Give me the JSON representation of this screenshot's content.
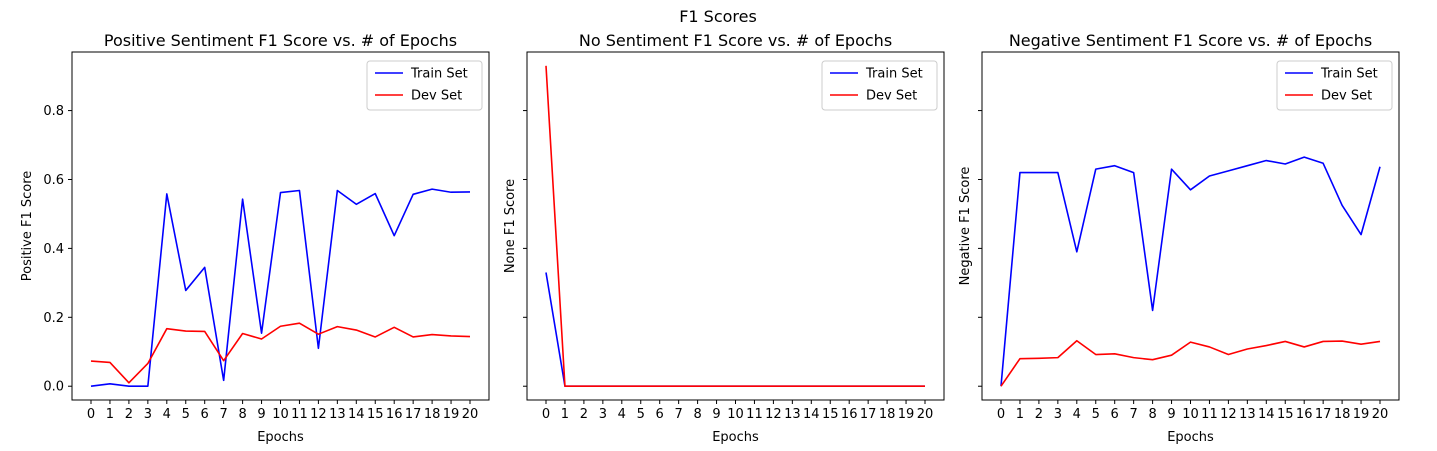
{
  "figure": {
    "title": "F1 Scores"
  },
  "colors": {
    "train": "#0000ff",
    "dev": "#ff0000",
    "axes": "#000000",
    "legend_border": "#cccccc"
  },
  "chart_data": [
    {
      "type": "line",
      "title": "Positive Sentiment F1 Score vs. # of Epochs",
      "xlabel": "Epochs",
      "ylabel": "Positive F1 Score",
      "x": [
        0,
        1,
        2,
        3,
        4,
        5,
        6,
        7,
        8,
        9,
        10,
        11,
        12,
        13,
        14,
        15,
        16,
        17,
        18,
        19,
        20
      ],
      "xticks": [
        "0",
        "1",
        "2",
        "3",
        "4",
        "5",
        "6",
        "7",
        "8",
        "9",
        "10",
        "11",
        "12",
        "13",
        "14",
        "15",
        "16",
        "17",
        "18",
        "19",
        "20"
      ],
      "ylim": [
        -0.04,
        0.97
      ],
      "yticks": [
        0.0,
        0.2,
        0.4,
        0.6,
        0.8
      ],
      "yticklabels": [
        "0.0",
        "0.2",
        "0.4",
        "0.6",
        "0.8"
      ],
      "legend": {
        "location": "upper right",
        "entries": [
          "Train Set",
          "Dev Set"
        ]
      },
      "series": [
        {
          "name": "Train Set",
          "color": "#0000ff",
          "values": [
            0.0,
            0.007,
            0.0,
            0.0,
            0.558,
            0.278,
            0.345,
            0.017,
            0.543,
            0.154,
            0.562,
            0.568,
            0.11,
            0.568,
            0.528,
            0.559,
            0.437,
            0.557,
            0.572,
            0.563,
            0.564
          ]
        },
        {
          "name": "Dev Set",
          "color": "#ff0000",
          "values": [
            0.073,
            0.069,
            0.01,
            0.066,
            0.167,
            0.16,
            0.159,
            0.074,
            0.153,
            0.137,
            0.174,
            0.183,
            0.151,
            0.173,
            0.163,
            0.143,
            0.171,
            0.143,
            0.15,
            0.146,
            0.144
          ]
        }
      ]
    },
    {
      "type": "line",
      "title": "No Sentiment F1 Score vs. # of Epochs",
      "xlabel": "Epochs",
      "ylabel": "None F1 Score",
      "x": [
        0,
        1,
        2,
        3,
        4,
        5,
        6,
        7,
        8,
        9,
        10,
        11,
        12,
        13,
        14,
        15,
        16,
        17,
        18,
        19,
        20
      ],
      "xticks": [
        "0",
        "1",
        "2",
        "3",
        "4",
        "5",
        "6",
        "7",
        "8",
        "9",
        "10",
        "11",
        "12",
        "13",
        "14",
        "15",
        "16",
        "17",
        "18",
        "19",
        "20"
      ],
      "ylim": [
        -0.04,
        0.97
      ],
      "yticks": [
        0.0,
        0.2,
        0.4,
        0.6,
        0.8
      ],
      "yticklabels": [
        "",
        "",
        "",
        "",
        ""
      ],
      "legend": {
        "location": "upper right",
        "entries": [
          "Train Set",
          "Dev Set"
        ]
      },
      "series": [
        {
          "name": "Train Set",
          "color": "#0000ff",
          "values": [
            0.33,
            0,
            0,
            0,
            0,
            0,
            0,
            0,
            0,
            0,
            0,
            0,
            0,
            0,
            0,
            0,
            0,
            0,
            0,
            0,
            0
          ]
        },
        {
          "name": "Dev Set",
          "color": "#ff0000",
          "values": [
            0.93,
            0,
            0,
            0,
            0,
            0,
            0,
            0,
            0,
            0,
            0,
            0,
            0,
            0,
            0,
            0,
            0,
            0,
            0,
            0,
            0
          ]
        }
      ]
    },
    {
      "type": "line",
      "title": "Negative Sentiment F1 Score vs. # of Epochs",
      "xlabel": "Epochs",
      "ylabel": "Negative F1 Score",
      "x": [
        0,
        1,
        2,
        3,
        4,
        5,
        6,
        7,
        8,
        9,
        10,
        11,
        12,
        13,
        14,
        15,
        16,
        17,
        18,
        19,
        20
      ],
      "xticks": [
        "0",
        "1",
        "2",
        "3",
        "4",
        "5",
        "6",
        "7",
        "8",
        "9",
        "10",
        "11",
        "12",
        "13",
        "14",
        "15",
        "16",
        "17",
        "18",
        "19",
        "20"
      ],
      "ylim": [
        -0.04,
        0.97
      ],
      "yticks": [
        0.0,
        0.2,
        0.4,
        0.6,
        0.8
      ],
      "yticklabels": [
        "",
        "",
        "",
        "",
        ""
      ],
      "legend": {
        "location": "upper right",
        "entries": [
          "Train Set",
          "Dev Set"
        ]
      },
      "series": [
        {
          "name": "Train Set",
          "color": "#0000ff",
          "values": [
            0.0,
            0.62,
            0.62,
            0.62,
            0.39,
            0.63,
            0.64,
            0.62,
            0.22,
            0.63,
            0.57,
            0.61,
            0.625,
            0.64,
            0.655,
            0.645,
            0.665,
            0.647,
            0.525,
            0.44,
            0.637
          ]
        },
        {
          "name": "Dev Set",
          "color": "#ff0000",
          "values": [
            0.0,
            0.08,
            0.081,
            0.083,
            0.132,
            0.092,
            0.094,
            0.083,
            0.077,
            0.09,
            0.128,
            0.114,
            0.092,
            0.108,
            0.118,
            0.13,
            0.114,
            0.13,
            0.131,
            0.122,
            0.13
          ]
        }
      ]
    }
  ]
}
